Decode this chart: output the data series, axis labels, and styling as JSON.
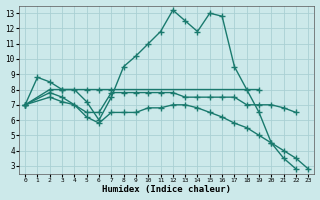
{
  "xlabel": "Humidex (Indice chaleur)",
  "xlim": [
    -0.5,
    23.5
  ],
  "ylim": [
    2.5,
    13.5
  ],
  "yticks": [
    3,
    4,
    5,
    6,
    7,
    8,
    9,
    10,
    11,
    12,
    13
  ],
  "xticks": [
    0,
    1,
    2,
    3,
    4,
    5,
    6,
    7,
    8,
    9,
    10,
    11,
    12,
    13,
    14,
    15,
    16,
    17,
    18,
    19,
    20,
    21,
    22,
    23
  ],
  "background_color": "#cce9ea",
  "grid_color": "#aad0d4",
  "line_color": "#1a7a6e",
  "line_width": 1.0,
  "marker": "+",
  "marker_size": 4,
  "lines": [
    {
      "x": [
        0,
        1,
        2,
        3,
        4,
        5,
        6,
        7,
        8,
        9,
        10,
        11,
        12,
        13,
        14,
        15,
        16,
        17,
        18,
        19,
        20,
        21,
        22
      ],
      "y": [
        7.0,
        8.8,
        8.5,
        8.0,
        8.0,
        7.2,
        6.0,
        7.5,
        9.5,
        10.2,
        11.0,
        11.8,
        13.2,
        12.5,
        11.8,
        13.0,
        12.8,
        9.5,
        8.0,
        6.5,
        4.5,
        3.5,
        2.8
      ]
    },
    {
      "x": [
        0,
        2,
        3,
        5,
        6,
        7,
        19
      ],
      "y": [
        7.0,
        8.0,
        8.0,
        8.0,
        8.0,
        8.0,
        8.0
      ]
    },
    {
      "x": [
        0,
        2,
        3,
        5,
        6,
        7,
        8,
        9,
        10,
        11,
        12,
        13,
        14,
        15,
        16,
        17,
        18,
        19,
        20,
        21,
        22
      ],
      "y": [
        7.0,
        7.8,
        7.5,
        6.5,
        6.5,
        7.8,
        7.8,
        7.8,
        7.8,
        7.8,
        7.8,
        7.5,
        7.5,
        7.5,
        7.5,
        7.5,
        7.0,
        7.0,
        7.0,
        6.8,
        6.5
      ]
    },
    {
      "x": [
        0,
        2,
        3,
        4,
        5,
        6,
        7,
        8,
        9,
        10,
        11,
        12,
        13,
        14,
        15,
        16,
        17,
        18,
        19,
        20,
        21,
        22,
        23
      ],
      "y": [
        7.0,
        7.5,
        7.2,
        7.0,
        6.2,
        5.8,
        6.5,
        6.5,
        6.5,
        6.8,
        6.8,
        7.0,
        7.0,
        6.8,
        6.5,
        6.2,
        5.8,
        5.5,
        5.0,
        4.5,
        4.0,
        3.5,
        2.8
      ]
    }
  ]
}
